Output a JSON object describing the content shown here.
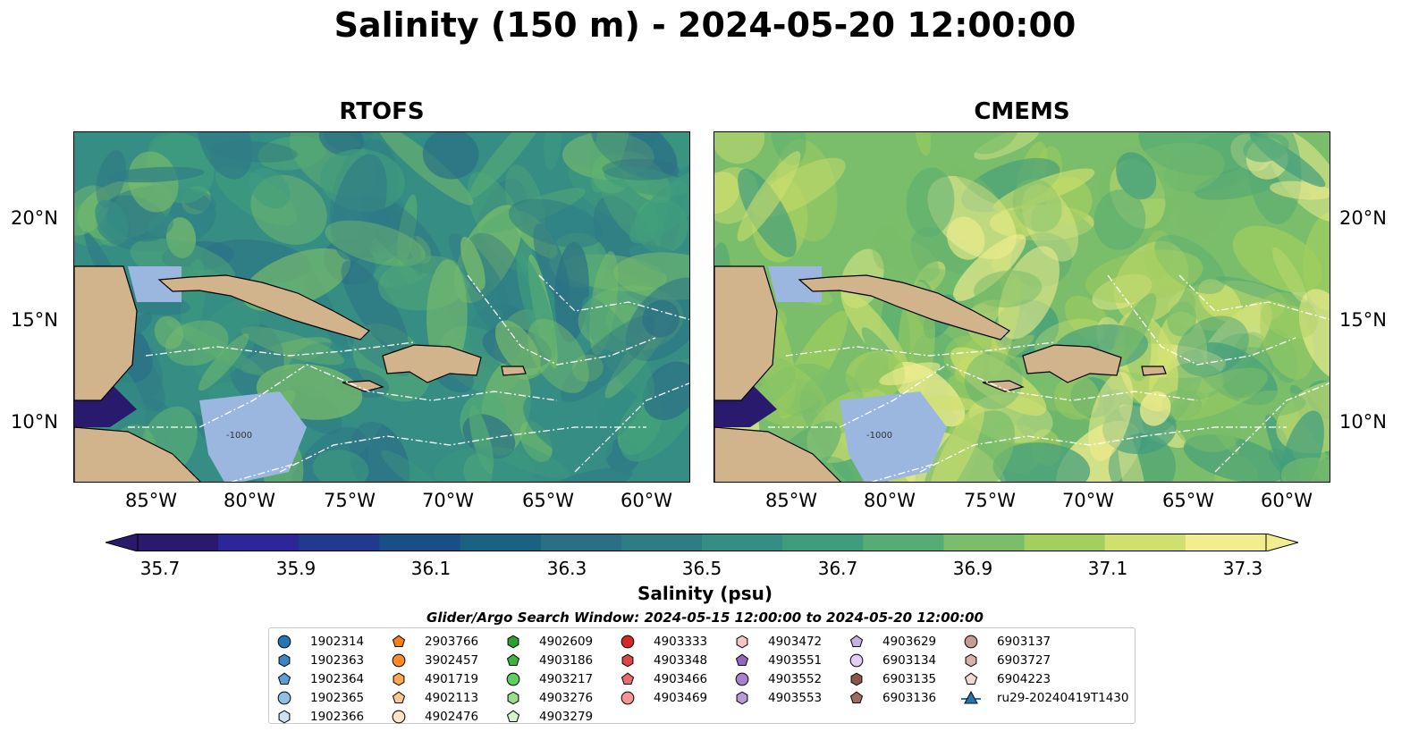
{
  "title": "Salinity (150 m) - 2024-05-20 12:00:00",
  "panels": [
    {
      "title": "RTOFS",
      "scheme": "low"
    },
    {
      "title": "CMEMS",
      "scheme": "high"
    }
  ],
  "axes": {
    "lon_ticks": [
      "85°W",
      "80°W",
      "75°W",
      "70°W",
      "65°W",
      "60°W"
    ],
    "lat_ticks": [
      "20°N",
      "15°N",
      "10°N"
    ]
  },
  "colorbar": {
    "colors": [
      "#2a1a6e",
      "#2c2699",
      "#1f3a8f",
      "#184f86",
      "#1a6182",
      "#2b6f86",
      "#2f7c86",
      "#358d84",
      "#3f9c7d",
      "#56ac74",
      "#7abd6a",
      "#a3cf5e",
      "#cfe06e",
      "#f2ee8f"
    ],
    "tick_labels": [
      "35.7",
      "35.9",
      "36.1",
      "36.3",
      "36.5",
      "36.7",
      "36.9",
      "37.1",
      "37.3"
    ],
    "label": "Salinity (psu)",
    "extend": "both"
  },
  "search_window": "Glider/Argo Search Window: 2024-05-15 12:00:00 to 2024-05-20 12:00:00",
  "legend": {
    "columns": [
      [
        {
          "label": "1902314",
          "marker": "circle",
          "color": "#1f77b4"
        },
        {
          "label": "1902363",
          "marker": "hexagon",
          "color": "#3a86c4"
        },
        {
          "label": "1902364",
          "marker": "pentagon",
          "color": "#5a9fd8"
        },
        {
          "label": "1902365",
          "marker": "circle",
          "color": "#8fbfe6"
        },
        {
          "label": "1902366",
          "marker": "hexagon",
          "color": "#cde3f5"
        }
      ],
      [
        {
          "label": "2903766",
          "marker": "pentagon",
          "color": "#ff7f0e"
        },
        {
          "label": "3902457",
          "marker": "circle",
          "color": "#ff8c28"
        },
        {
          "label": "4901719",
          "marker": "hexagon",
          "color": "#ffa851"
        },
        {
          "label": "4902113",
          "marker": "pentagon",
          "color": "#ffc78e"
        },
        {
          "label": "4902476",
          "marker": "circle",
          "color": "#ffe4c8"
        }
      ],
      [
        {
          "label": "4902609",
          "marker": "hexagon",
          "color": "#2ca02c"
        },
        {
          "label": "4903186",
          "marker": "pentagon",
          "color": "#3cb43c"
        },
        {
          "label": "4903217",
          "marker": "circle",
          "color": "#5fcf5f"
        },
        {
          "label": "4903276",
          "marker": "hexagon",
          "color": "#98df8a"
        },
        {
          "label": "4903279",
          "marker": "pentagon",
          "color": "#d4f5cc"
        }
      ],
      [
        {
          "label": "4903333",
          "marker": "circle",
          "color": "#d62728"
        },
        {
          "label": "4903348",
          "marker": "hexagon",
          "color": "#e04444"
        },
        {
          "label": "4903466",
          "marker": "pentagon",
          "color": "#ec6a6a"
        },
        {
          "label": "4903469",
          "marker": "circle",
          "color": "#f59595"
        }
      ],
      [
        {
          "label": "4903472",
          "marker": "hexagon",
          "color": "#f9c4c4"
        },
        {
          "label": "4903551",
          "marker": "pentagon",
          "color": "#9467bd"
        },
        {
          "label": "4903552",
          "marker": "circle",
          "color": "#a782cc"
        },
        {
          "label": "4903553",
          "marker": "hexagon",
          "color": "#b89ad8"
        }
      ],
      [
        {
          "label": "4903629",
          "marker": "pentagon",
          "color": "#c5b0e8"
        },
        {
          "label": "6903134",
          "marker": "circle",
          "color": "#e2cff5"
        },
        {
          "label": "6903135",
          "marker": "hexagon",
          "color": "#8c564b"
        },
        {
          "label": "6903136",
          "marker": "pentagon",
          "color": "#a06a5e"
        }
      ],
      [
        {
          "label": "6903137",
          "marker": "circle",
          "color": "#c49c94"
        },
        {
          "label": "6903727",
          "marker": "hexagon",
          "color": "#d9b3aa"
        },
        {
          "label": "6904223",
          "marker": "pentagon",
          "color": "#f0d9d2"
        },
        {
          "label": "ru29-20240419T1430",
          "marker": "triangle-line",
          "color": "#1f77b4"
        }
      ]
    ]
  },
  "contour_label": "-1000"
}
